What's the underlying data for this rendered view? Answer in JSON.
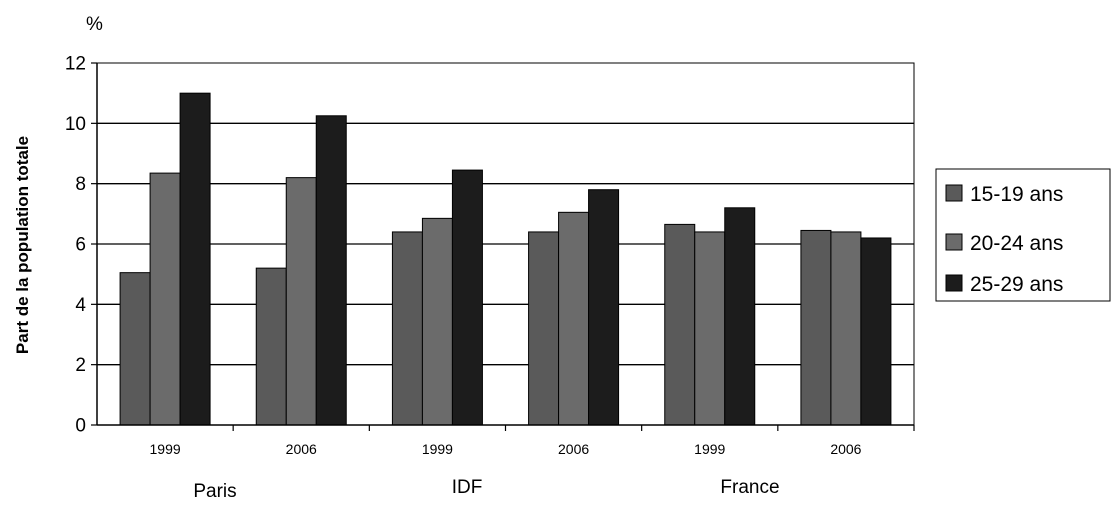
{
  "chart_data": {
    "type": "bar",
    "unit_label": "%",
    "ylabel": "Part de la population totale",
    "xlabel": "",
    "ylim": [
      0,
      12
    ],
    "yticks": [
      0,
      2,
      4,
      6,
      8,
      10,
      12
    ],
    "grid": true,
    "legend_position": "right",
    "groups": [
      "Paris",
      "IDF",
      "France"
    ],
    "categories": [
      "1999",
      "2006",
      "1999",
      "2006",
      "1999",
      "2006"
    ],
    "series": [
      {
        "name": "15-19 ans",
        "color": "#5a5a5a",
        "values": [
          5.05,
          5.2,
          6.4,
          6.4,
          6.65,
          6.45
        ]
      },
      {
        "name": "20-24 ans",
        "color": "#6b6b6b",
        "values": [
          8.35,
          8.2,
          6.85,
          7.05,
          6.4,
          6.4
        ]
      },
      {
        "name": "25-29 ans",
        "color": "#1c1c1c",
        "values": [
          11.0,
          10.25,
          8.45,
          7.8,
          7.2,
          6.2
        ]
      }
    ]
  }
}
